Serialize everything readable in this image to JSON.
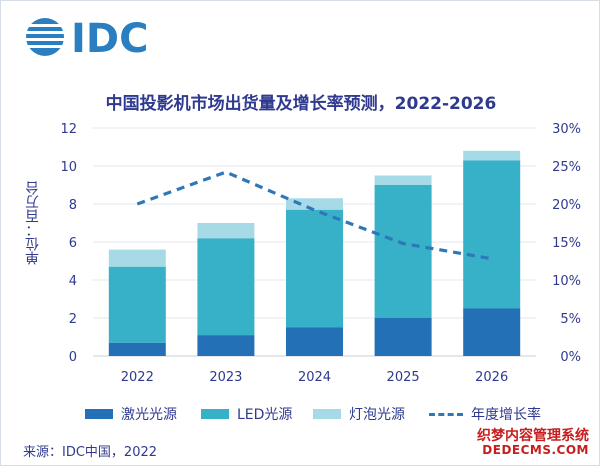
{
  "header": {
    "brand": "IDC"
  },
  "chart_data": {
    "type": "bar",
    "title": "中国投影机市场出货量及增长率预测，2022-2026",
    "ylabel": "单位：百万台",
    "categories": [
      "2022",
      "2023",
      "2024",
      "2025",
      "2026"
    ],
    "ylim": [
      0,
      12
    ],
    "y_ticks": [
      "0",
      "2",
      "4",
      "6",
      "8",
      "10",
      "12"
    ],
    "y2lim": [
      0,
      30
    ],
    "y2_ticks": [
      "0%",
      "5%",
      "10%",
      "15%",
      "20%",
      "25%",
      "30%"
    ],
    "stacked": true,
    "grid": true,
    "series": [
      {
        "name": "激光光源",
        "color": "#2370b7",
        "values": [
          0.7,
          1.1,
          1.5,
          2.0,
          2.5
        ]
      },
      {
        "name": "LED光源",
        "color": "#37b1c8",
        "values": [
          4.0,
          5.1,
          6.2,
          7.0,
          7.8
        ]
      },
      {
        "name": "灯泡光源",
        "color": "#a6dae6",
        "values": [
          0.9,
          0.8,
          0.6,
          0.5,
          0.5
        ]
      }
    ],
    "line_series": {
      "name": "年度增长率",
      "color": "#2f78b8",
      "axis": "right",
      "values": [
        20,
        24.2,
        19.2,
        14.8,
        12.8
      ]
    },
    "legend_placement": "bottom"
  },
  "footer": {
    "source": "来源：IDC中国，2022"
  },
  "watermark": {
    "line1": "织梦内容管理系统",
    "line2": "DEDECMS.COM"
  }
}
